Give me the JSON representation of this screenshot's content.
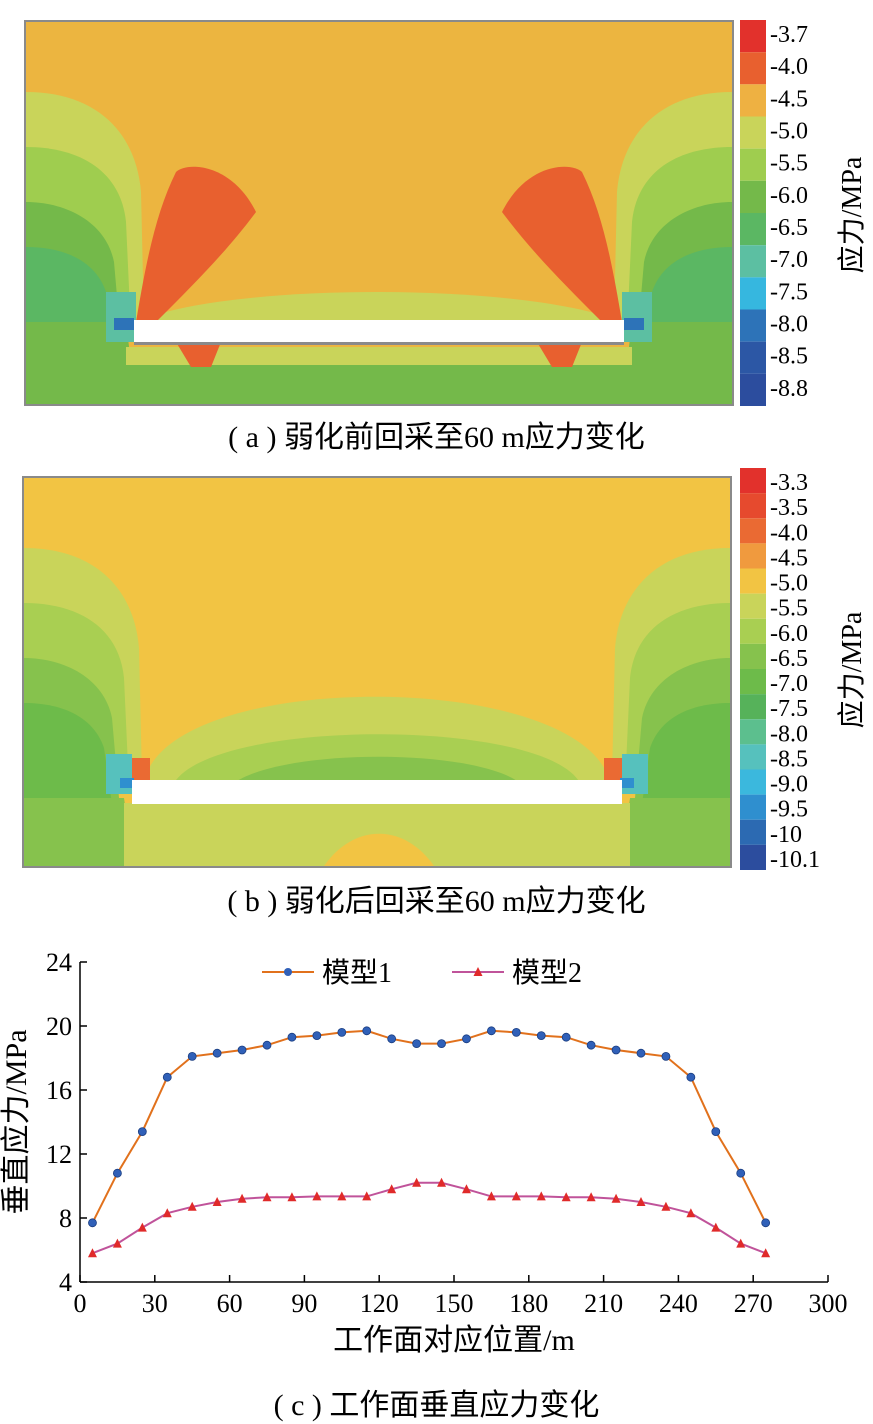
{
  "panel_a": {
    "caption": "( a ) 弱化前回采至60 m应力变化",
    "colorbar_title": "应力/MPa",
    "colorbar": [
      {
        "label": "-3.7",
        "color": "#e2312c"
      },
      {
        "label": "-4.0",
        "color": "#e8602f"
      },
      {
        "label": "-4.5",
        "color": "#eeb142"
      },
      {
        "label": "-5.0",
        "color": "#c9d45a"
      },
      {
        "label": "-5.5",
        "color": "#9fcd4f"
      },
      {
        "label": "-6.0",
        "color": "#74b94a"
      },
      {
        "label": "-6.5",
        "color": "#5bb763"
      },
      {
        "label": "-7.0",
        "color": "#5cbfa2"
      },
      {
        "label": "-7.5",
        "color": "#36b7df"
      },
      {
        "label": "-8.0",
        "color": "#2d73b8"
      },
      {
        "label": "-8.5",
        "color": "#2c57a5"
      },
      {
        "label": "-8.8",
        "color": "#2c4d9e"
      }
    ]
  },
  "panel_b": {
    "caption": "( b ) 弱化后回采至60 m应力变化",
    "colorbar_title": "应力/MPa",
    "colorbar": [
      {
        "label": "-3.3",
        "color": "#e2312c"
      },
      {
        "label": "-3.5",
        "color": "#e64a2e"
      },
      {
        "label": "-4.0",
        "color": "#ea6a33"
      },
      {
        "label": "-4.5",
        "color": "#f09a3e"
      },
      {
        "label": "-5.0",
        "color": "#f2c443"
      },
      {
        "label": "-5.5",
        "color": "#c9d45a"
      },
      {
        "label": "-6.0",
        "color": "#a9cf52"
      },
      {
        "label": "-6.5",
        "color": "#86c24d"
      },
      {
        "label": "-7.0",
        "color": "#6dbb4a"
      },
      {
        "label": "-7.5",
        "color": "#56b25a"
      },
      {
        "label": "-8.0",
        "color": "#5cbf8e"
      },
      {
        "label": "-8.5",
        "color": "#56c1bd"
      },
      {
        "label": "-9.0",
        "color": "#3bb8dd"
      },
      {
        "label": "-9.5",
        "color": "#2f8fcf"
      },
      {
        "label": "-10",
        "color": "#2c6ab2"
      },
      {
        "label": "-10.1",
        "color": "#2c4d9e"
      }
    ]
  },
  "colors": {
    "base_orange": "#ecb540",
    "model1": "#e1711c",
    "model1_marker": "#3060b8",
    "model2": "#c0539a",
    "model2_marker": "#e02a2a"
  },
  "chart_data": {
    "type": "line",
    "caption": "( c ) 工作面垂直应力变化",
    "xlabel": "工作面对应位置/m",
    "ylabel": "垂直应力/MPa",
    "xlim": [
      0,
      300
    ],
    "ylim": [
      4,
      24
    ],
    "xticks": [
      0,
      30,
      60,
      90,
      120,
      150,
      180,
      210,
      240,
      270,
      300
    ],
    "yticks": [
      4,
      8,
      12,
      16,
      20,
      24
    ],
    "legend_position": "top",
    "x": [
      5,
      15,
      25,
      35,
      45,
      55,
      65,
      75,
      85,
      95,
      105,
      115,
      125,
      135,
      145,
      155,
      165,
      175,
      185,
      195,
      205,
      215,
      225,
      235,
      245,
      255,
      265,
      275
    ],
    "series": [
      {
        "name": "模型1",
        "marker": "circle",
        "values": [
          7.7,
          10.8,
          13.4,
          16.8,
          18.1,
          18.3,
          18.5,
          18.8,
          19.3,
          19.4,
          19.6,
          19.7,
          19.2,
          18.9,
          18.9,
          19.2,
          19.7,
          19.6,
          19.4,
          19.3,
          18.8,
          18.5,
          18.3,
          18.1,
          16.8,
          13.4,
          10.8,
          7.7
        ]
      },
      {
        "name": "模型2",
        "marker": "triangle",
        "values": [
          5.8,
          6.4,
          7.4,
          8.3,
          8.7,
          9.0,
          9.2,
          9.3,
          9.3,
          9.35,
          9.35,
          9.35,
          9.8,
          10.2,
          10.2,
          9.8,
          9.35,
          9.35,
          9.35,
          9.3,
          9.3,
          9.2,
          9.0,
          8.7,
          8.3,
          7.4,
          6.4,
          5.8
        ]
      }
    ]
  }
}
